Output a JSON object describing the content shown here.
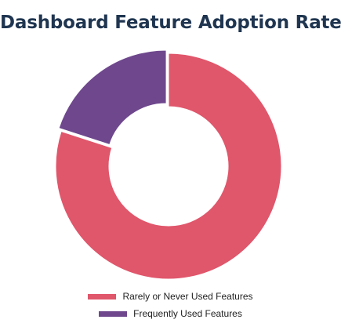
{
  "chart_data": {
    "type": "pie",
    "style": "donut",
    "title": "Dashboard Feature Adoption Rate",
    "categories": [
      "Rarely or Never Used Features",
      "Frequently Used Features"
    ],
    "values": [
      80,
      20
    ],
    "colors": [
      "#e0566b",
      "#6e478d"
    ],
    "start_angle_deg": 0,
    "direction": "clockwise",
    "exploded": [
      false,
      true
    ],
    "legend_position": "bottom"
  }
}
